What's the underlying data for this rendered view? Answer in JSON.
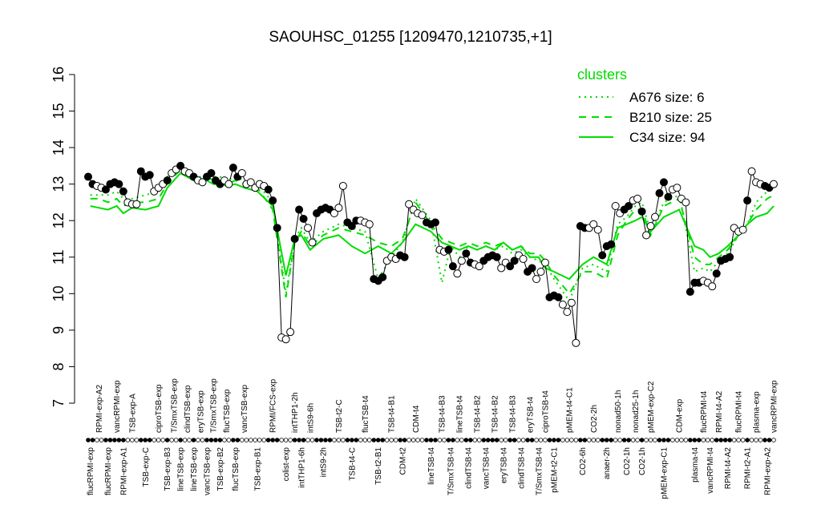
{
  "chart_data": {
    "type": "line",
    "title": "SAOUHSC_01255 [1209470,1210735,+1]",
    "ylim": [
      7,
      16
    ],
    "yticks": [
      7,
      8,
      9,
      10,
      11,
      12,
      13,
      14,
      15,
      16
    ],
    "point_line_color": "#000000",
    "groups": [
      {
        "label": "flucRPMI-exp",
        "values": [
          13.2,
          13.0
        ],
        "filled": true
      },
      {
        "label": "RPMI-exp-A2",
        "values": [
          12.95,
          12.9
        ],
        "filled": false
      },
      {
        "label": "flucRPMI-exp",
        "values": [
          12.85,
          13.0
        ],
        "filled": true
      },
      {
        "label": "vancRPMI-exp",
        "values": [
          13.05,
          13.0
        ],
        "filled": true
      },
      {
        "label": "RPMI-exp-A1",
        "values": [
          12.8
        ],
        "filled": true
      },
      {
        "label": "TSB-exp-A",
        "values": [
          12.5,
          12.45,
          12.45
        ],
        "filled": false
      },
      {
        "label": "TSB-exp-C",
        "values": [
          13.35,
          13.2,
          13.25
        ],
        "filled": true
      },
      {
        "label": "ciproTSB-exp",
        "values": [
          12.8,
          12.9,
          13.0
        ],
        "filled": false
      },
      {
        "label": "TSB-exp-B3",
        "values": [
          13.1
        ],
        "filled": true
      },
      {
        "label": "T/SmxTSB-exp",
        "values": [
          13.3,
          13.4
        ],
        "filled": false
      },
      {
        "label": "lineTSB-exp",
        "values": [
          13.5
        ],
        "filled": true
      },
      {
        "label": "clindTSB-exp",
        "values": [
          13.35,
          13.3
        ],
        "filled": false
      },
      {
        "label": "lineTSB-exp",
        "values": [
          13.2
        ],
        "filled": true
      },
      {
        "label": "eryTSB-exp",
        "values": [
          13.1,
          13.05
        ],
        "filled": false
      },
      {
        "label": "vancTSB-exp",
        "values": [
          13.2
        ],
        "filled": true
      },
      {
        "label": "T/SmxTSB-exp",
        "values": [
          13.3,
          13.1
        ],
        "filled": true
      },
      {
        "label": "TSB-exp-B2",
        "values": [
          13.0
        ],
        "filled": true
      },
      {
        "label": "flucTSB-exp",
        "values": [
          13.1,
          13.0
        ],
        "filled": false
      },
      {
        "label": "flucTSB-exp",
        "values": [
          13.45,
          13.2
        ],
        "filled": true
      },
      {
        "label": "vancTSB-exp",
        "values": [
          13.3,
          13.0
        ],
        "filled": false
      },
      {
        "label": "TSB-exp-B1",
        "values": [
          13.05,
          12.9,
          13.0,
          12.95
        ],
        "filled": false
      },
      {
        "label": "RPMI/FCS-exp",
        "values": [
          12.85,
          12.55,
          11.8
        ],
        "filled": true
      },
      {
        "label": "colist-exp",
        "values": [
          8.8,
          8.75,
          8.95
        ],
        "filled": false
      },
      {
        "label": "intTHP1-2h",
        "values": [
          11.5
        ],
        "filled": true
      },
      {
        "label": "intTHP1-6h",
        "values": [
          12.3,
          12.05
        ],
        "filled": true
      },
      {
        "label": "intS9-6h",
        "values": [
          11.8,
          11.4
        ],
        "filled": false
      },
      {
        "label": "intS9-2h",
        "values": [
          12.2,
          12.3,
          12.35,
          12.3
        ],
        "filled": true
      },
      {
        "label": "TSB-t2-C",
        "values": [
          12.2,
          12.35,
          12.95
        ],
        "filled": false
      },
      {
        "label": "TSB-t4-C",
        "values": [
          11.95,
          11.85,
          12.0
        ],
        "filled": true
      },
      {
        "label": "flucTSB-t4",
        "values": [
          12.0,
          11.95,
          11.9
        ],
        "filled": false
      },
      {
        "label": "TSB-t2-B1",
        "values": [
          10.4,
          10.35,
          10.45
        ],
        "filled": true
      },
      {
        "label": "TSB-t4-B1",
        "values": [
          10.9,
          11.0,
          10.95
        ],
        "filled": false
      },
      {
        "label": "CDM-t2",
        "values": [
          11.05,
          11.0
        ],
        "filled": true
      },
      {
        "label": "CDM-t4",
        "values": [
          12.45,
          12.3,
          12.2,
          12.15
        ],
        "filled": false
      },
      {
        "label": "lineTSB-t4",
        "values": [
          11.95,
          11.9,
          11.95
        ],
        "filled": true
      },
      {
        "label": "TSB-t4-B3",
        "values": [
          11.2,
          11.15
        ],
        "filled": false
      },
      {
        "label": "T/SmxTSB-t4",
        "values": [
          11.2,
          10.75
        ],
        "filled": true
      },
      {
        "label": "lineTSB-t4",
        "values": [
          10.55,
          10.9
        ],
        "filled": false
      },
      {
        "label": "clindTSB-t4",
        "values": [
          11.1,
          10.85
        ],
        "filled": true
      },
      {
        "label": "TSB-t4-B2",
        "values": [
          10.8,
          10.75
        ],
        "filled": false
      },
      {
        "label": "vancTSB-t4",
        "values": [
          10.9,
          11.0
        ],
        "filled": true
      },
      {
        "label": "TSB-t4-B2",
        "values": [
          11.05,
          11.0
        ],
        "filled": true
      },
      {
        "label": "eryTSB-t4",
        "values": [
          10.7,
          10.85
        ],
        "filled": false
      },
      {
        "label": "TSB-t4-B3",
        "values": [
          10.75,
          10.9
        ],
        "filled": true
      },
      {
        "label": "clindTSB-t4",
        "values": [
          11.05,
          10.95
        ],
        "filled": false
      },
      {
        "label": "eryTSB-t4",
        "values": [
          10.6,
          10.7
        ],
        "filled": true
      },
      {
        "label": "T/SmxTSB-t4",
        "values": [
          10.4,
          10.6
        ],
        "filled": false
      },
      {
        "label": "ciproTSB-t4",
        "values": [
          10.85
        ],
        "filled": false
      },
      {
        "label": "pMEM-t2-C1",
        "values": [
          9.9,
          9.95,
          9.9
        ],
        "filled": true
      },
      {
        "label": "pMEM-t4-C1",
        "values": [
          9.7,
          9.5,
          9.75,
          8.65
        ],
        "filled": false
      },
      {
        "label": "CO2-6h",
        "values": [
          11.85,
          11.8
        ],
        "filled": true
      },
      {
        "label": "CO2-2h",
        "values": [
          11.8,
          11.9,
          11.75
        ],
        "filled": false
      },
      {
        "label": "anaer-2h",
        "values": [
          11.05,
          11.3,
          11.35
        ],
        "filled": true
      },
      {
        "label": "nonad50-1h",
        "values": [
          12.4,
          12.2
        ],
        "filled": false
      },
      {
        "label": "CO2-1h",
        "values": [
          12.3,
          12.4
        ],
        "filled": true
      },
      {
        "label": "nonad25-1h",
        "values": [
          12.55,
          12.6
        ],
        "filled": false
      },
      {
        "label": "CO2-1h",
        "values": [
          12.25
        ],
        "filled": true
      },
      {
        "label": "pMEM-exp-C2",
        "values": [
          11.6,
          11.85,
          12.1
        ],
        "filled": false
      },
      {
        "label": "pMEM-exp-C1",
        "values": [
          12.75,
          13.05,
          12.65
        ],
        "filled": true
      },
      {
        "label": "CDM-exp",
        "values": [
          12.85,
          12.9,
          12.6,
          12.5
        ],
        "filled": false
      },
      {
        "label": "plasma-t4",
        "values": [
          10.05,
          10.3,
          10.3
        ],
        "filled": true
      },
      {
        "label": "flucRPMI-t4",
        "values": [
          10.35
        ],
        "filled": false
      },
      {
        "label": "vancRPMI-t4",
        "values": [
          10.3,
          10.2
        ],
        "filled": false
      },
      {
        "label": "RPMI-t4-A2",
        "values": [
          10.55,
          10.9
        ],
        "filled": true
      },
      {
        "label": "RPMI-t4-A2",
        "values": [
          10.95,
          11.0
        ],
        "filled": true
      },
      {
        "label": "flucRPMI-t4",
        "values": [
          11.8,
          11.7,
          11.75
        ],
        "filled": false
      },
      {
        "label": "RPMI-t2-A1",
        "values": [
          12.55
        ],
        "filled": true
      },
      {
        "label": "plasma-exp",
        "values": [
          13.35,
          13.05,
          13.0
        ],
        "filled": false
      },
      {
        "label": "RPMI-exp-A2",
        "values": [
          12.95,
          12.9
        ],
        "filled": true
      },
      {
        "label": "vancRPMI-exp",
        "values": [
          13.0
        ],
        "filled": false
      }
    ],
    "legend_title": "clusters",
    "series": [
      {
        "name": "A676 size: 6",
        "color": "#00dd00",
        "style": "dotted",
        "values": [
          12.7,
          12.7,
          12.7,
          12.8,
          12.6,
          12.6,
          12.7,
          12.8,
          13.2,
          13.4,
          13.5,
          13.4,
          13.3,
          13.2,
          13.3,
          13.2,
          13.2,
          13.1,
          13.2,
          13.1,
          13.0,
          12.5,
          10.0,
          11.5,
          11.8,
          11.4,
          11.7,
          11.9,
          11.8,
          11.7,
          10.4,
          11.0,
          11.4,
          12.6,
          12.0,
          10.3,
          11.3,
          11.0,
          11.3,
          11.2,
          11.3,
          11.2,
          11.3,
          11.1,
          11.2,
          11.0,
          10.9,
          10.8,
          10.4,
          9.8,
          10.7,
          10.8,
          10.6,
          11.9,
          12.1,
          12.4,
          12.5,
          11.7,
          12.5,
          12.7,
          10.6,
          10.7,
          10.6,
          10.9,
          11.1,
          11.6,
          11.9,
          12.5,
          12.8,
          12.9
        ]
      },
      {
        "name": "B210 size: 25",
        "color": "#00dd00",
        "style": "dashed",
        "values": [
          12.6,
          12.6,
          12.5,
          12.6,
          12.4,
          12.5,
          12.5,
          12.6,
          13.0,
          13.2,
          13.4,
          13.3,
          13.2,
          13.1,
          13.2,
          13.1,
          13.1,
          13.0,
          13.1,
          13.0,
          12.9,
          12.3,
          9.9,
          11.4,
          11.7,
          11.3,
          11.6,
          11.8,
          11.7,
          11.6,
          11.4,
          11.3,
          11.5,
          12.5,
          11.9,
          11.5,
          11.4,
          11.3,
          11.4,
          11.3,
          11.4,
          11.3,
          11.4,
          11.2,
          11.3,
          11.1,
          11.1,
          10.9,
          10.5,
          10.0,
          10.6,
          10.6,
          10.4,
          11.6,
          12.0,
          12.3,
          12.3,
          11.6,
          12.4,
          12.6,
          11.0,
          10.8,
          10.8,
          11.0,
          11.2,
          11.6,
          11.9,
          12.3,
          12.6,
          12.7
        ]
      },
      {
        "name": "C34 size: 94",
        "color": "#00dd00",
        "style": "solid",
        "values": [
          12.4,
          12.35,
          12.3,
          12.4,
          12.2,
          12.35,
          12.3,
          12.4,
          12.9,
          13.1,
          13.3,
          13.2,
          13.1,
          13.0,
          13.1,
          13.0,
          13.0,
          12.95,
          13.0,
          12.9,
          12.8,
          12.4,
          10.5,
          11.5,
          11.6,
          11.2,
          11.5,
          11.6,
          11.3,
          11.1,
          11.3,
          11.1,
          11.4,
          11.9,
          11.7,
          11.4,
          11.3,
          11.2,
          11.3,
          11.2,
          11.3,
          11.2,
          11.4,
          11.2,
          11.3,
          11.0,
          11.0,
          10.7,
          10.6,
          10.4,
          10.8,
          11.0,
          10.8,
          11.8,
          11.9,
          12.0,
          12.1,
          11.7,
          12.1,
          12.3,
          11.3,
          11.2,
          11.0,
          11.1,
          11.3,
          11.6,
          11.9,
          12.1,
          12.2,
          12.4
        ]
      }
    ]
  }
}
